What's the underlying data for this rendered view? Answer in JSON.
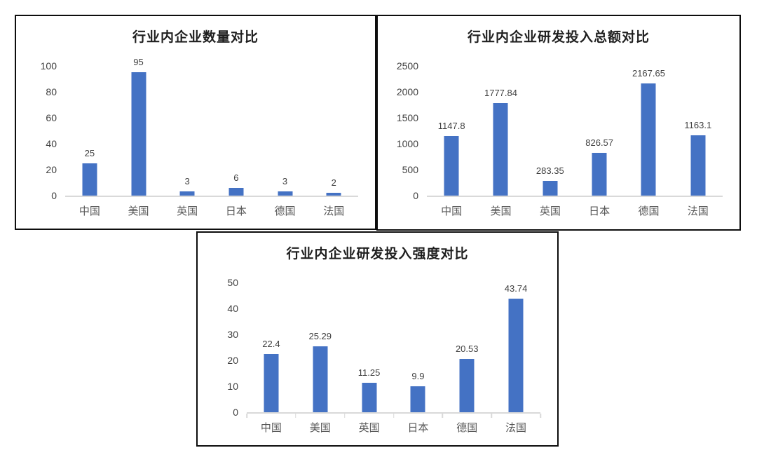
{
  "styles": {
    "bar_color": "#4472c4",
    "axis_line_color": "#d9d9d9",
    "title_color": "#1f1f1f",
    "tick_label_color": "#404040",
    "category_label_color": "#595959",
    "box_border_color": "#0d0d0d",
    "background": "#ffffff"
  },
  "chart_data": [
    {
      "type": "bar",
      "title": "行业内企业数量对比",
      "categories": [
        "中国",
        "美国",
        "英国",
        "日本",
        "德国",
        "法国"
      ],
      "values": [
        25,
        95,
        3,
        6,
        3,
        2
      ],
      "data_labels": [
        "25",
        "95",
        "3",
        "6",
        "3",
        "2"
      ],
      "xlabel": "",
      "ylabel": "",
      "ylim": [
        0,
        100
      ],
      "yticks": [
        0,
        20,
        40,
        60,
        80,
        100
      ],
      "grid": false,
      "legend": false,
      "x_tick_marks": false
    },
    {
      "type": "bar",
      "title": "行业内企业研发投入总额对比",
      "categories": [
        "中国",
        "美国",
        "英国",
        "日本",
        "德国",
        "法国"
      ],
      "values": [
        1147.8,
        1777.84,
        283.35,
        826.57,
        2167.65,
        1163.1
      ],
      "data_labels": [
        "1147.8",
        "1777.84",
        "283.35",
        "826.57",
        "2167.65",
        "1163.1"
      ],
      "xlabel": "",
      "ylabel": "",
      "ylim": [
        0,
        2500
      ],
      "yticks": [
        0,
        500,
        1000,
        1500,
        2000,
        2500
      ],
      "grid": false,
      "legend": false,
      "x_tick_marks": false
    },
    {
      "type": "bar",
      "title": "行业内企业研发投入强度对比",
      "categories": [
        "中国",
        "美国",
        "英国",
        "日本",
        "德国",
        "法国"
      ],
      "values": [
        22.4,
        25.29,
        11.25,
        9.9,
        20.53,
        43.74
      ],
      "data_labels": [
        "22.4",
        "25.29",
        "11.25",
        "9.9",
        "20.53",
        "43.74"
      ],
      "xlabel": "",
      "ylabel": "",
      "ylim": [
        0,
        50
      ],
      "yticks": [
        0,
        10,
        20,
        30,
        40,
        50
      ],
      "grid": false,
      "legend": false,
      "x_tick_marks": true
    }
  ]
}
